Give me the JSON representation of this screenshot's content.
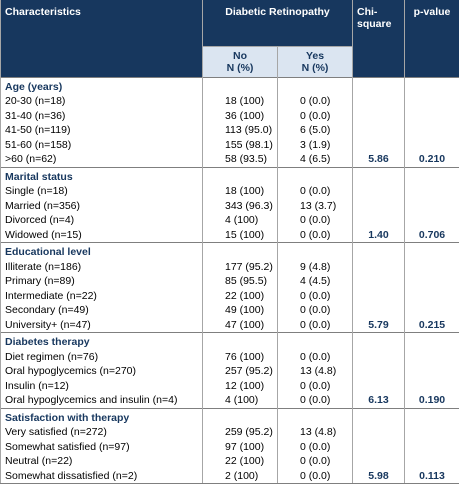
{
  "header": {
    "characteristics": "Characteristics",
    "group": "Diabetic Retinopathy",
    "no": "No",
    "no_unit": "N (%)",
    "yes": "Yes",
    "yes_unit": "N (%)",
    "chi": "Chi-square",
    "p": "p-value"
  },
  "sections": [
    {
      "title": "Age (years)",
      "rows": [
        [
          "20-30 (n=18)",
          "18 (100)",
          "0 (0.0)"
        ],
        [
          "31-40 (n=36)",
          "36 (100)",
          "0 (0.0)"
        ],
        [
          "41-50 (n=119)",
          "113 (95.0)",
          "6 (5.0)"
        ],
        [
          "51-60 (n=158)",
          "155 (98.1)",
          "3 (1.9)"
        ],
        [
          ">60 (n=62)",
          "58 (93.5)",
          "4 (6.5)"
        ]
      ],
      "chi": "5.86",
      "p": "0.210"
    },
    {
      "title": "Marital status",
      "rows": [
        [
          "Single (n=18)",
          "18 (100)",
          "0 (0.0)"
        ],
        [
          "Married (n=356)",
          "343 (96.3)",
          "13 (3.7)"
        ],
        [
          "Divorced (n=4)",
          "4 (100)",
          "0 (0.0)"
        ],
        [
          "Widowed (n=15)",
          "15 (100)",
          "0 (0.0)"
        ]
      ],
      "chi": "1.40",
      "p": "0.706"
    },
    {
      "title": "Educational level",
      "rows": [
        [
          "Illiterate (n=186)",
          "177 (95.2)",
          "9 (4.8)"
        ],
        [
          "Primary (n=89)",
          "85 (95.5)",
          "4 (4.5)"
        ],
        [
          "Intermediate (n=22)",
          "22 (100)",
          "0 (0.0)"
        ],
        [
          "Secondary (n=49)",
          "49 (100)",
          "0 (0.0)"
        ],
        [
          "University+ (n=47)",
          "47 (100)",
          "0 (0.0)"
        ]
      ],
      "chi": "5.79",
      "p": "0.215"
    },
    {
      "title": "Diabetes therapy",
      "rows": [
        [
          "Diet regimen (n=76)",
          "76 (100)",
          "0 (0.0)"
        ],
        [
          "Oral hypoglycemics (n=270)",
          "257 (95.2)",
          "13 (4.8)"
        ],
        [
          "Insulin (n=12)",
          "12 (100)",
          "0 (0.0)"
        ],
        [
          "Oral hypoglycemics and insulin  (n=4)",
          "4 (100)",
          "0 (0.0)"
        ]
      ],
      "chi": "6.13",
      "p": "0.190"
    },
    {
      "title": "Satisfaction with therapy",
      "rows": [
        [
          "Very satisfied (n=272)",
          "259 (95.2)",
          "13 (4.8)"
        ],
        [
          "Somewhat satisfied (n=97)",
          "97 (100)",
          "0 (0.0)"
        ],
        [
          "Neutral (n=22)",
          "22 (100)",
          "0 (0.0)"
        ],
        [
          "Somewhat dissatisfied (n=2)",
          "2 (100)",
          "0 (0.0)"
        ]
      ],
      "chi": "5.98",
      "p": "0.113"
    }
  ]
}
